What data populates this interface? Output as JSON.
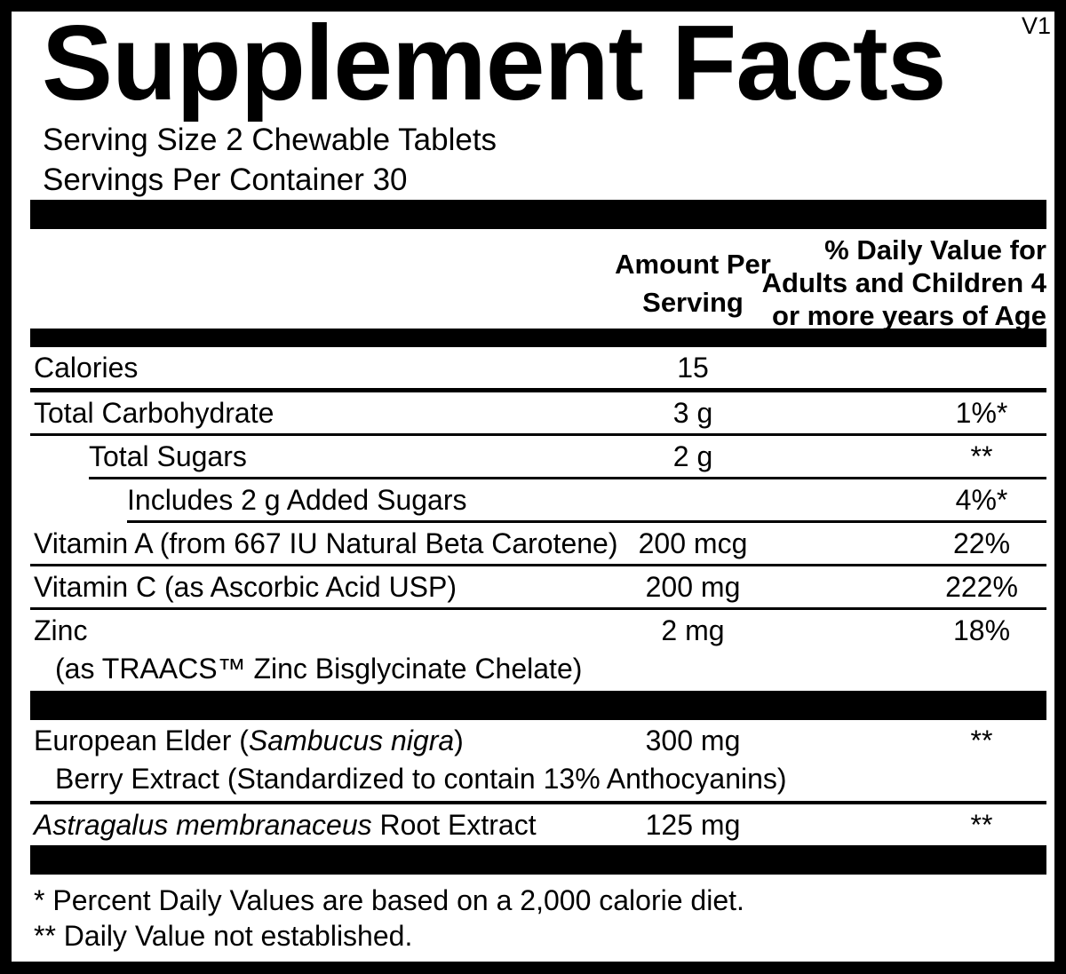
{
  "version_tag": "V1",
  "title": "Supplement Facts",
  "serving_size": "Serving Size 2 Chewable Tablets",
  "servings_per_container": "Servings Per Container 30",
  "header": {
    "amount_lines": [
      "Amount Per",
      "Serving"
    ],
    "dv_lines": [
      "% Daily Value for",
      "Adults and Children 4",
      "or more years of Age"
    ]
  },
  "nutrient_rows": [
    {
      "name": [
        {
          "t": "Calories"
        }
      ],
      "indent": 0,
      "amount": "15",
      "dv": "",
      "sep": "heavy",
      "sep_indent": 0
    },
    {
      "name": [
        {
          "t": "Total Carbohydrate"
        }
      ],
      "indent": 0,
      "amount": "3 g",
      "dv": "1%*",
      "sep": "thin",
      "sep_indent": 0
    },
    {
      "name": [
        {
          "t": "Total Sugars"
        }
      ],
      "indent": 1,
      "amount": "2 g",
      "dv": "**",
      "sep": "thin",
      "sep_indent": 1
    },
    {
      "name": [
        {
          "t": "Includes 2 g Added Sugars"
        }
      ],
      "indent": 2,
      "amount": "",
      "dv": "4%*",
      "sep": "thin",
      "sep_indent": 2
    },
    {
      "name": [
        {
          "t": "Vitamin A (from 667 IU Natural Beta Carotene)"
        }
      ],
      "indent": 0,
      "amount": "200 mcg",
      "dv": "22%",
      "sep": "thin",
      "sep_indent": 0
    },
    {
      "name": [
        {
          "t": "Vitamin C (as Ascorbic Acid USP)"
        }
      ],
      "indent": 0,
      "amount": "200 mg",
      "dv": "222%",
      "sep": "thin",
      "sep_indent": 0
    },
    {
      "name": [
        {
          "t": "Zinc"
        }
      ],
      "name2": [
        {
          "t": "(as TRAACS™ Zinc Bisglycinate Chelate)"
        }
      ],
      "indent": 0,
      "amount": "2 mg",
      "dv": "18%",
      "sep": "none",
      "sep_indent": 0
    }
  ],
  "botanical_rows": [
    {
      "name": [
        {
          "t": "European Elder ("
        },
        {
          "t": "Sambucus nigra",
          "i": true
        },
        {
          "t": ")"
        }
      ],
      "name2": [
        {
          "t": "Berry Extract (Standardized to contain 13% Anthocyanins)"
        }
      ],
      "indent": 0,
      "amount": "300 mg",
      "dv": "**",
      "sep": "medium",
      "sep_indent": 0
    },
    {
      "name": [
        {
          "t": "Astragalus membranaceus",
          "i": true
        },
        {
          "t": " Root Extract"
        }
      ],
      "indent": 0,
      "amount": "125 mg",
      "dv": "**",
      "sep": "none",
      "sep_indent": 0
    }
  ],
  "footnotes": [
    "* Percent Daily Values are based on a 2,000 calorie diet.",
    "** Daily Value not established."
  ],
  "colors": {
    "ink": "#000000",
    "paper": "#ffffff"
  }
}
